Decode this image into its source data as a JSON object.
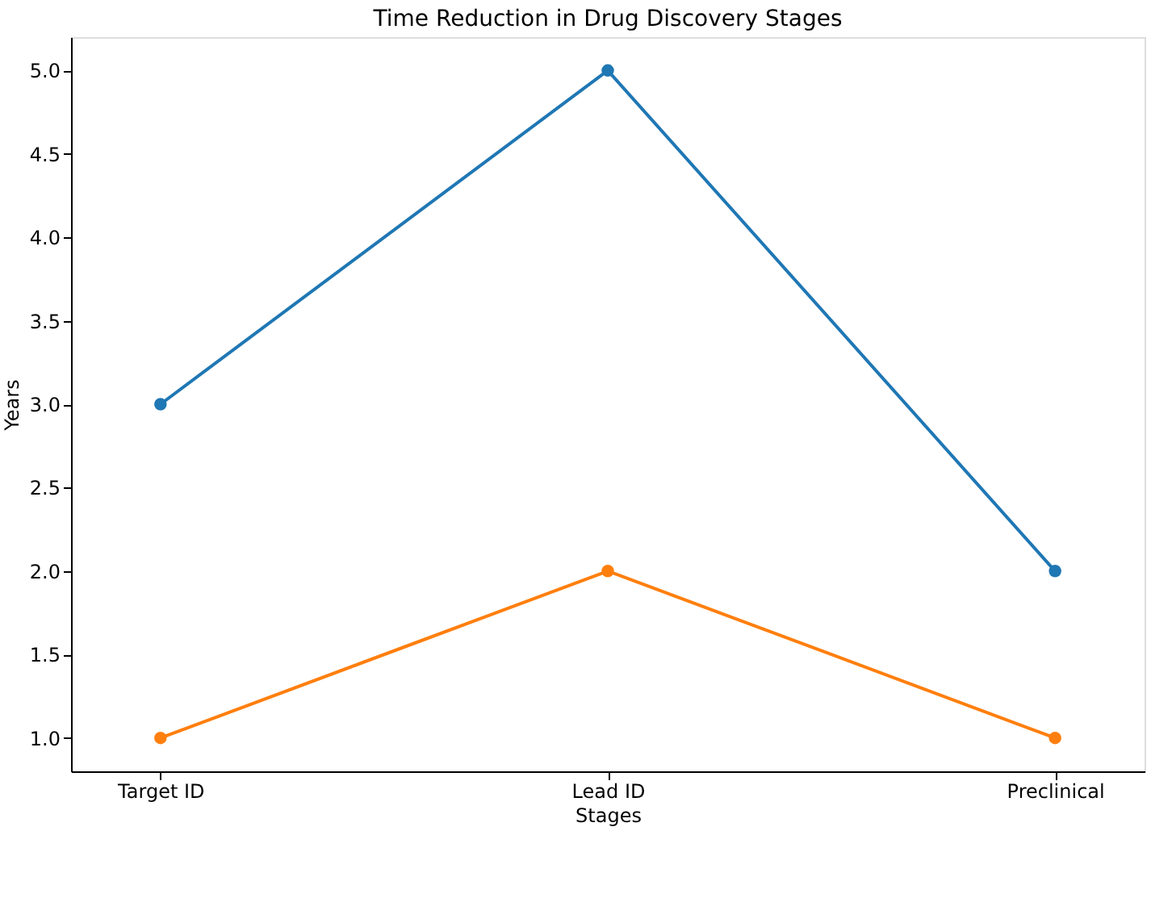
{
  "chart_data": {
    "type": "line",
    "title": "Time Reduction in Drug Discovery Stages",
    "xlabel": "Stages",
    "ylabel": "Years",
    "categories": [
      "Target ID",
      "Lead ID",
      "Preclinical"
    ],
    "series": [
      {
        "color": "#1f77b4",
        "values": [
          3.0,
          5.0,
          2.0
        ]
      },
      {
        "color": "#ff7f0e",
        "values": [
          1.0,
          2.0,
          1.0
        ]
      }
    ],
    "ylim": [
      0.8,
      5.2
    ],
    "yticks": [
      {
        "value": 1,
        "label": "1.0"
      },
      1.5,
      {
        "value": 2,
        "label": "2.0"
      },
      2.5,
      {
        "value": 3,
        "label": "3.0"
      },
      3.5,
      {
        "value": 4,
        "label": "4.0"
      },
      4.5,
      {
        "value": 5,
        "label": "5.0"
      }
    ],
    "grid": false,
    "marker": "circle",
    "line_style": "solid"
  }
}
